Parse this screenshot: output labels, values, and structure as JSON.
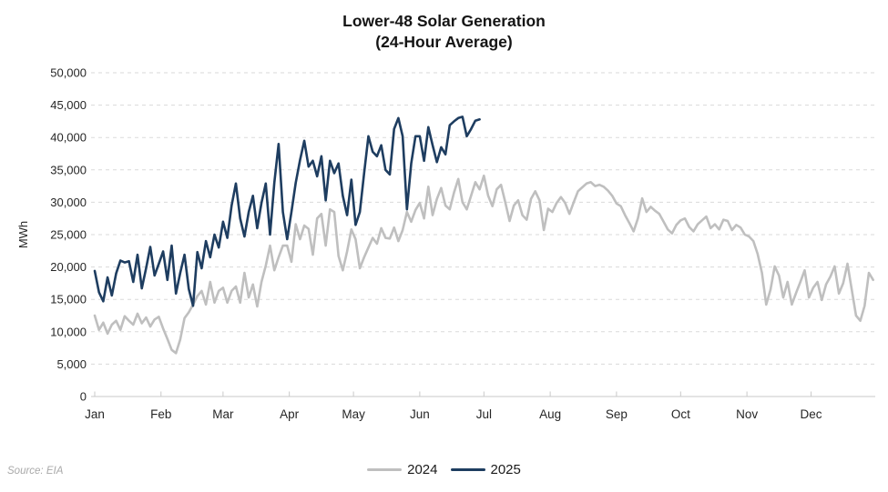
{
  "title": {
    "line1": "Lower-48 Solar Generation",
    "line2": "(24-Hour Average)"
  },
  "source": "Source: EIA",
  "chart_data": {
    "type": "line",
    "title": "Lower-48 Solar Generation (24-Hour Average)",
    "xlabel": "",
    "ylabel": "MWh",
    "ylim": [
      0,
      50000
    ],
    "grid": "horizontal-dashed",
    "legend_position": "bottom-center",
    "x_unit": "day-of-year",
    "y_ticks": [
      {
        "value": 0,
        "label": "0"
      },
      {
        "value": 5000,
        "label": "5,000"
      },
      {
        "value": 10000,
        "label": "10,000"
      },
      {
        "value": 15000,
        "label": "15,000"
      },
      {
        "value": 20000,
        "label": "20,000"
      },
      {
        "value": 25000,
        "label": "25,000"
      },
      {
        "value": 30000,
        "label": "30,000"
      },
      {
        "value": 35000,
        "label": "35,000"
      },
      {
        "value": 40000,
        "label": "40,000"
      },
      {
        "value": 45000,
        "label": "45,000"
      },
      {
        "value": 50000,
        "label": "50,000"
      }
    ],
    "x_months": [
      {
        "label": "Jan",
        "day": 0
      },
      {
        "label": "Feb",
        "day": 31
      },
      {
        "label": "Mar",
        "day": 60
      },
      {
        "label": "Apr",
        "day": 91
      },
      {
        "label": "May",
        "day": 121
      },
      {
        "label": "Jun",
        "day": 152
      },
      {
        "label": "Jul",
        "day": 182
      },
      {
        "label": "Aug",
        "day": 213
      },
      {
        "label": "Sep",
        "day": 244
      },
      {
        "label": "Oct",
        "day": 274
      },
      {
        "label": "Nov",
        "day": 305
      },
      {
        "label": "Dec",
        "day": 335
      }
    ],
    "series": [
      {
        "name": "2024",
        "color": "#bfbfbf",
        "day_step": 2,
        "start_day": 0,
        "values": [
          12500,
          10300,
          11400,
          9700,
          11100,
          11700,
          10300,
          12400,
          11700,
          11100,
          12800,
          11300,
          12200,
          10800,
          11900,
          12300,
          10500,
          8900,
          7200,
          6700,
          8800,
          12100,
          13000,
          14200,
          15500,
          16300,
          14200,
          17700,
          14500,
          16300,
          16800,
          14500,
          16300,
          17000,
          14500,
          19100,
          15300,
          17300,
          13900,
          17700,
          20200,
          23300,
          19500,
          21500,
          23300,
          23300,
          20800,
          26600,
          24300,
          26400,
          25900,
          21900,
          27500,
          28200,
          23300,
          28900,
          28500,
          21700,
          19500,
          22400,
          25800,
          24300,
          19800,
          21500,
          23000,
          24500,
          23600,
          26000,
          24500,
          24400,
          26100,
          24000,
          25700,
          28500,
          27000,
          28800,
          29900,
          27500,
          32400,
          28000,
          30500,
          32200,
          29500,
          28900,
          31500,
          33600,
          30000,
          28900,
          31000,
          33100,
          32000,
          34100,
          31000,
          29400,
          32000,
          32700,
          30000,
          27100,
          29500,
          30300,
          28000,
          27300,
          30500,
          31700,
          30300,
          25700,
          29000,
          28500,
          29900,
          30800,
          29900,
          28200,
          30000,
          31700,
          32300,
          32900,
          33100,
          32500,
          32700,
          32400,
          31800,
          31000,
          29800,
          29400,
          28000,
          26800,
          25500,
          27500,
          30600,
          28500,
          29300,
          28700,
          28200,
          27000,
          25800,
          25200,
          26500,
          27200,
          27500,
          26200,
          25500,
          26600,
          27200,
          27800,
          26000,
          26600,
          25800,
          27300,
          27100,
          25700,
          26500,
          26100,
          25000,
          24700,
          24000,
          22000,
          19100,
          14200,
          16500,
          20100,
          18700,
          15300,
          17700,
          14200,
          16000,
          17700,
          19500,
          15300,
          16800,
          17700,
          14900,
          17300,
          18500,
          20100,
          15900,
          17500,
          20500,
          16500,
          12500,
          11700,
          14000,
          19100,
          18000
        ]
      },
      {
        "name": "2025",
        "color": "#1e3d60",
        "day_step": 2,
        "start_day": 0,
        "values": [
          19400,
          16100,
          14700,
          18400,
          15600,
          19000,
          21000,
          20700,
          20900,
          17700,
          21900,
          16700,
          19800,
          23100,
          18700,
          20500,
          22400,
          18000,
          23300,
          15900,
          19100,
          21900,
          16600,
          14000,
          22300,
          19800,
          24000,
          21500,
          25000,
          23000,
          27000,
          24500,
          29500,
          32900,
          27500,
          24700,
          28500,
          31000,
          26000,
          29900,
          32900,
          25000,
          33000,
          39000,
          28500,
          24300,
          28500,
          33000,
          36500,
          39500,
          35500,
          36400,
          34000,
          37100,
          30300,
          36400,
          34500,
          36000,
          31000,
          28000,
          33500,
          26500,
          28500,
          34500,
          40200,
          37800,
          37100,
          38800,
          35000,
          34300,
          41300,
          43000,
          40200,
          28900,
          36000,
          40200,
          40200,
          36400,
          41600,
          38800,
          36200,
          38500,
          37400,
          41900,
          42500,
          43000,
          43200,
          40200,
          41300,
          42600,
          42800
        ]
      }
    ]
  }
}
